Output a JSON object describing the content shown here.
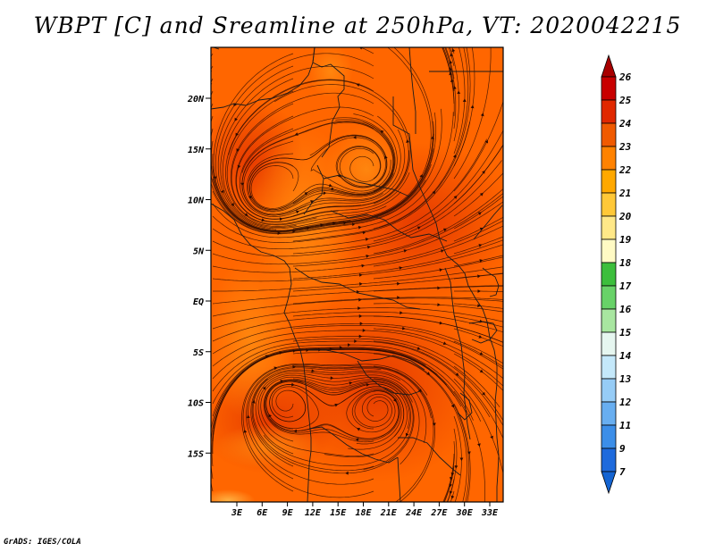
{
  "title": "WBPT [C] and Sreamline at 250hPa, VT: 2020042215",
  "credit": "GrADS: IGES/COLA",
  "map": {
    "lat_labels": [
      "20N",
      "15N",
      "10N",
      "5N",
      "EQ",
      "5S",
      "10S",
      "15S"
    ],
    "lon_labels": [
      "3E",
      "6E",
      "9E",
      "12E",
      "15E",
      "18E",
      "21E",
      "24E",
      "27E",
      "30E",
      "33E"
    ],
    "lat_range": [
      -20,
      24.5
    ],
    "lon_range": [
      0,
      35
    ],
    "field_colors": {
      "dominant": "#FF6600",
      "warm_core": "#EE3C00",
      "cool_patch": "#FF8A10",
      "coolest_patch": "#FFB040"
    }
  },
  "colorbar": {
    "labels": [
      "26",
      "25",
      "24",
      "23",
      "22",
      "21",
      "20",
      "19",
      "18",
      "17",
      "16",
      "15",
      "14",
      "13",
      "12",
      "11",
      "9",
      "7"
    ],
    "colors": [
      "#A80000",
      "#C80000",
      "#E02800",
      "#F05A00",
      "#FF8200",
      "#FFA800",
      "#FFC838",
      "#FFE888",
      "#FFFAC4",
      "#3CBE3C",
      "#68D268",
      "#A8E6A0",
      "#E6F6F0",
      "#C4E8FA",
      "#96CCF6",
      "#68AEF0",
      "#3C8EE8",
      "#1E6ADC",
      "#1464D2"
    ]
  }
}
